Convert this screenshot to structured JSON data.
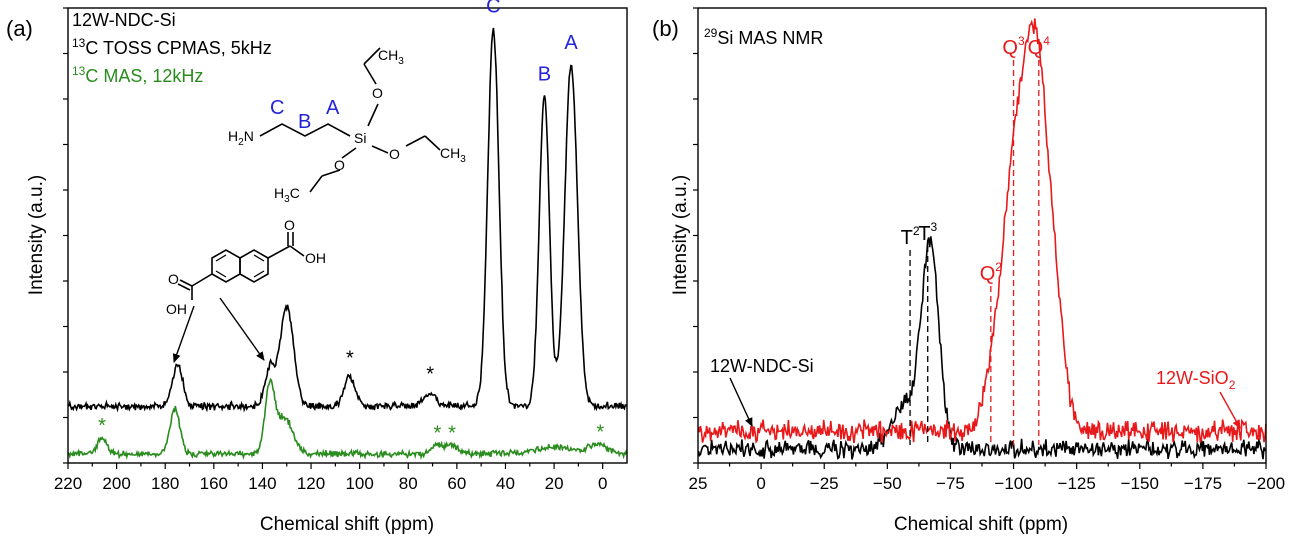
{
  "chart_data": [
    {
      "type": "line",
      "panel_label": "(a)",
      "xlabel": "Chemical shift (ppm)",
      "ylabel": "Intensity (a.u.)",
      "xlim": [
        220,
        -10
      ],
      "x_reversed": true,
      "xticks": [
        220,
        200,
        180,
        160,
        140,
        120,
        100,
        80,
        60,
        40,
        20,
        0
      ],
      "xtick_labels": [
        "220",
        "200",
        "180",
        "160",
        "140",
        "120",
        "100",
        "80",
        "60",
        "40",
        "20",
        "0"
      ],
      "ylim": [
        0,
        1
      ],
      "legend": {
        "line1": "12W-NDC-Si",
        "line2_sup": "13",
        "line2_text": "C TOSS CPMAS, 5kHz",
        "line3_sup": "13",
        "line3_text": "C MAS, 12kHz"
      },
      "series": [
        {
          "color": "#000000",
          "baseline": 0.125,
          "peaks": [
            {
              "x": 175,
              "h": 0.09,
              "w": 2.2
            },
            {
              "x": 137,
              "h": 0.08,
              "w": 2.0
            },
            {
              "x": 130,
              "h": 0.22,
              "w": 2.8
            },
            {
              "x": 104,
              "h": 0.065,
              "w": 2.2
            },
            {
              "x": 71,
              "h": 0.03,
              "w": 2.5
            },
            {
              "x": 45,
              "h": 0.83,
              "w": 2.3
            },
            {
              "x": 24,
              "h": 0.68,
              "w": 2.1
            },
            {
              "x": 13,
              "h": 0.75,
              "w": 2.6
            }
          ]
        },
        {
          "color": "#2a8c1e",
          "baseline": 0.02,
          "peaks": [
            {
              "x": 206,
              "h": 0.035,
              "w": 2.0
            },
            {
              "x": 176,
              "h": 0.1,
              "w": 2.0
            },
            {
              "x": 137,
              "h": 0.14,
              "w": 2.0
            },
            {
              "x": 131,
              "h": 0.08,
              "w": 3.5
            },
            {
              "x": 68,
              "h": 0.018,
              "w": 2.5
            },
            {
              "x": 62,
              "h": 0.018,
              "w": 2.5
            },
            {
              "x": 20,
              "h": 0.015,
              "w": 8.0
            },
            {
              "x": 2,
              "h": 0.02,
              "w": 4.0
            }
          ]
        }
      ],
      "annotations": {
        "black_stars": [
          {
            "text": "*",
            "x": 104
          },
          {
            "text": "*",
            "x": 71
          }
        ],
        "green_stars": [
          {
            "text": "*",
            "x": 206
          },
          {
            "text": "*",
            "x": 68
          },
          {
            "text": "*",
            "x": 62
          },
          {
            "text": "*",
            "x": 1
          }
        ],
        "peak_letters": [
          {
            "text": "C",
            "x": 45
          },
          {
            "text": "B",
            "x": 24
          },
          {
            "text": "A",
            "x": 13
          }
        ],
        "molecule_letters": [
          "C",
          "B",
          "A"
        ],
        "aptes_labels": {
          "ch3_top": "CH",
          "ch3_top_sub": "3",
          "o_top": "O",
          "si": "Si",
          "o_right": "O",
          "ch3_right": "CH",
          "ch3_right_sub": "3",
          "o_bottom": "O",
          "h3c": "H",
          "h3c_sub": "3",
          "h3c_c": "C",
          "h2n_h": "H",
          "h2n_sub": "2",
          "h2n_n": "N"
        },
        "ndc_labels": {
          "o_right": "O",
          "oh_right": "OH",
          "o_left": "O",
          "oh_left": "OH"
        }
      }
    },
    {
      "type": "line",
      "panel_label": "(b)",
      "xlabel": "Chemical shift (ppm)",
      "ylabel": "Intensity (a.u.)",
      "xlim": [
        25,
        -200
      ],
      "x_reversed": true,
      "xticks": [
        25,
        0,
        -25,
        -50,
        -75,
        -100,
        -125,
        -150,
        -175,
        -200
      ],
      "xtick_labels": [
        "25",
        "0",
        "−25",
        "−50",
        "−75",
        "−100",
        "−125",
        "−150",
        "−175",
        "−200"
      ],
      "ylim": [
        0,
        1
      ],
      "legend": {
        "line1_sup": "29",
        "line1_text": "Si MAS NMR"
      },
      "series": [
        {
          "name": "12W-NDC-Si",
          "color": "#000000",
          "baseline": 0.03,
          "peaks": [
            {
              "x": -57,
              "h": 0.1,
              "w": 5
            },
            {
              "x": -67,
              "h": 0.45,
              "w": 3.5
            }
          ]
        },
        {
          "name": "12W-SiO₂",
          "color": "#e8191b",
          "baseline": 0.07,
          "peaks": [
            {
              "x": -92,
              "h": 0.08,
              "w": 4
            },
            {
              "x": -101,
              "h": 0.55,
              "w": 5.5
            },
            {
              "x": -110,
              "h": 0.7,
              "w": 5
            },
            {
              "x": -118,
              "h": 0.12,
              "w": 3
            }
          ]
        }
      ],
      "annotations": {
        "black_dashed": [
          {
            "x": -59,
            "label": "T",
            "sup": "2"
          },
          {
            "x": -66,
            "label": "T",
            "sup": "3"
          }
        ],
        "red_dashed": [
          {
            "x": -91,
            "label": "Q",
            "sup": "2"
          },
          {
            "x": -100,
            "label": "Q",
            "sup": "3"
          },
          {
            "x": -110,
            "label": "Q",
            "sup": "4"
          }
        ],
        "series_labels": {
          "black": "12W-NDC-Si",
          "red_main": "12W-SiO",
          "red_sub": "2"
        }
      }
    }
  ]
}
